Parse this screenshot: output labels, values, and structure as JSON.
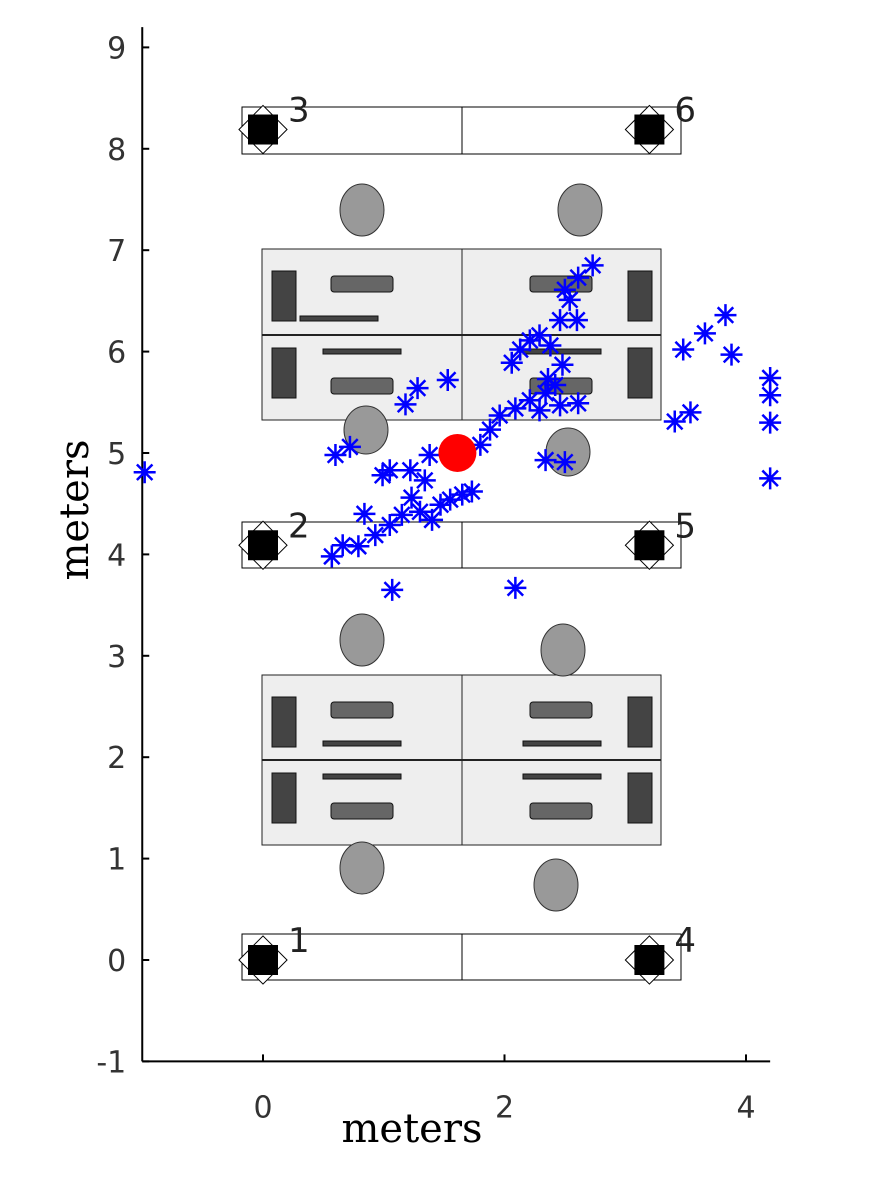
{
  "chart_data": {
    "type": "scatter",
    "xlabel": "meters",
    "ylabel": "meters",
    "xlim": [
      -1,
      4.2
    ],
    "ylim": [
      -1,
      9.2
    ],
    "xticks": [
      0,
      2,
      4
    ],
    "yticks": [
      -1,
      0,
      1,
      2,
      3,
      4,
      5,
      6,
      7,
      8,
      9
    ],
    "series": [
      {
        "color": "#0000ff",
        "marker": "asterisk",
        "x": [
          -0.98,
          0.57,
          0.66,
          0.79,
          0.93,
          1.05,
          0.84,
          1.15,
          1.23,
          1.3,
          1.4,
          1.47,
          1.55,
          1.65,
          1.73,
          1.34,
          1.22,
          1.38,
          0.99,
          1.05,
          0.6,
          0.72,
          1.18,
          1.28,
          1.53,
          1.07,
          2.09,
          1.8,
          1.88,
          1.96,
          2.09,
          2.21,
          2.34,
          2.42,
          2.46,
          2.29,
          2.36,
          2.48,
          2.06,
          2.13,
          2.21,
          2.29,
          2.38,
          2.46,
          2.54,
          2.5,
          2.61,
          2.73,
          2.6,
          2.61,
          2.34,
          2.5,
          3.48,
          3.66,
          3.83,
          3.88,
          3.41,
          3.54,
          4.2,
          4.2,
          4.2,
          4.2
        ],
        "y": [
          4.81,
          3.98,
          4.09,
          4.08,
          4.19,
          4.29,
          4.4,
          4.39,
          4.56,
          4.42,
          4.34,
          4.49,
          4.54,
          4.59,
          4.62,
          4.73,
          4.83,
          4.98,
          4.78,
          4.83,
          4.98,
          5.06,
          5.48,
          5.64,
          5.72,
          3.65,
          3.67,
          5.08,
          5.23,
          5.37,
          5.44,
          5.52,
          5.59,
          5.67,
          5.47,
          5.42,
          5.73,
          5.87,
          5.89,
          6.02,
          6.11,
          6.16,
          6.06,
          6.31,
          6.51,
          6.61,
          6.73,
          6.85,
          6.31,
          5.49,
          4.93,
          4.91,
          6.02,
          6.18,
          6.36,
          5.97,
          5.31,
          5.4,
          5.74,
          5.57,
          5.3,
          4.75
        ]
      },
      {
        "color": "#ff0000",
        "marker": "circle",
        "x": [
          1.61
        ],
        "y": [
          5.0
        ]
      }
    ],
    "anchors": {
      "labels": [
        "1",
        "2",
        "3",
        "4",
        "5",
        "6"
      ],
      "x": [
        0,
        0,
        0,
        3.2,
        3.2,
        3.2
      ],
      "y": [
        0,
        4.09,
        8.19,
        0,
        4.09,
        8.19
      ]
    }
  }
}
